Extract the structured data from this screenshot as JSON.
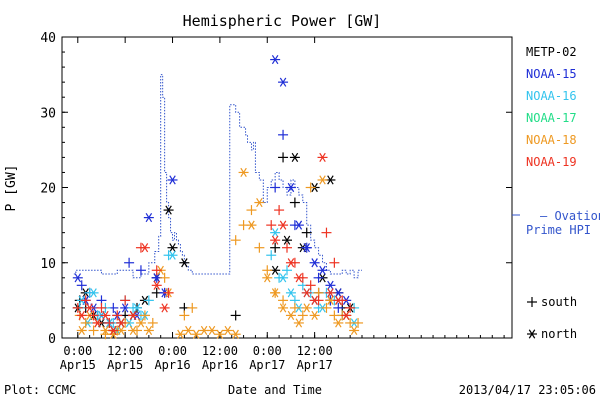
{
  "chart_data": {
    "type": "scatter",
    "title": "Hemispheric Power [GW]",
    "xlabel": "Date and Time",
    "ylabel": "P [GW]",
    "xlim": [
      -4,
      110
    ],
    "ylim": [
      0,
      40
    ],
    "yticks": [
      0,
      10,
      20,
      30,
      40
    ],
    "xticks": [
      {
        "x": 0,
        "line1": "0:00",
        "line2": "Apr15"
      },
      {
        "x": 12,
        "line1": "12:00",
        "line2": "Apr15"
      },
      {
        "x": 24,
        "line1": "0:00",
        "line2": "Apr16"
      },
      {
        "x": 36,
        "line1": "12:00",
        "line2": "Apr16"
      },
      {
        "x": 48,
        "line1": "0:00",
        "line2": "Apr17"
      },
      {
        "x": 60,
        "line1": "12:00",
        "line2": "Apr17"
      }
    ],
    "legend": [
      {
        "name": "METP-02",
        "color": "#000000"
      },
      {
        "name": "NOAA-15",
        "color": "#1f2ed6"
      },
      {
        "name": "NOAA-16",
        "color": "#33c4ee"
      },
      {
        "name": "NOAA-17",
        "color": "#22dd88"
      },
      {
        "name": "NOAA-18",
        "color": "#ee9922"
      },
      {
        "name": "NOAA-19",
        "color": "#ee3322"
      }
    ],
    "ovation": {
      "label_line1": "— Ovation",
      "label_line2": "Prime HPI",
      "color": "#3355cc",
      "x": [
        -1,
        -0.5,
        1.5,
        6,
        10,
        14,
        16,
        18,
        19.5,
        20.5,
        21,
        21.5,
        22,
        22.5,
        23,
        23.5,
        24,
        24.5,
        25,
        25.5,
        26,
        26.5,
        27,
        27.5,
        28,
        29,
        30,
        30.5,
        31,
        32,
        33,
        34,
        36,
        37,
        38.5,
        40,
        41,
        42,
        42.5,
        43,
        44,
        44.5,
        45,
        46,
        47,
        48,
        49,
        50,
        51,
        52,
        53,
        54,
        55,
        56,
        57,
        58,
        59,
        60,
        61,
        62,
        63,
        64,
        65,
        66,
        67,
        68,
        69,
        70,
        71,
        72
      ],
      "y": [
        8.5,
        9,
        9,
        8.5,
        9,
        8,
        8.5,
        10,
        11.5,
        13.5,
        35,
        32,
        22,
        18,
        16,
        14,
        13,
        14,
        13,
        12.5,
        11.5,
        11,
        10,
        9.5,
        9,
        8.5,
        8.5,
        8.5,
        8.5,
        8.5,
        8.5,
        8.5,
        8.5,
        8.5,
        31,
        30,
        28,
        28,
        27,
        26,
        25,
        26,
        22,
        21,
        18,
        20,
        21,
        22,
        21,
        20,
        19,
        21,
        20,
        19,
        18,
        15,
        13,
        12,
        11,
        10,
        9,
        8.5,
        8.5,
        8.5,
        9,
        8.5,
        9,
        8,
        9,
        9
      ]
    },
    "series": [
      {
        "name": "METP-02",
        "marker": "+",
        "x": [
          0.5,
          2,
          5,
          8,
          12,
          15,
          20,
          27,
          40,
          50,
          52,
          55,
          58,
          61,
          64,
          67
        ],
        "y": [
          5,
          4,
          3,
          2,
          3,
          4,
          6,
          4,
          3,
          12,
          24,
          18,
          14,
          6,
          5,
          4
        ]
      },
      {
        "name": "METP-02",
        "marker": "*",
        "x": [
          0,
          2,
          4,
          6,
          9,
          11,
          14,
          17,
          20,
          23,
          24,
          27,
          50,
          53,
          55,
          57,
          60,
          62,
          64,
          66,
          69
        ],
        "y": [
          4,
          6,
          3,
          2,
          1,
          2,
          3,
          5,
          8,
          17,
          12,
          10,
          9,
          13,
          24,
          12,
          20,
          8,
          21,
          6,
          4
        ]
      },
      {
        "name": "NOAA-15",
        "marker": "+",
        "x": [
          1,
          3,
          6,
          9,
          13,
          16,
          20,
          22,
          50,
          52,
          55,
          58,
          61,
          64,
          66
        ],
        "y": [
          7,
          6,
          5,
          4,
          10,
          9,
          8,
          6,
          20,
          27,
          15,
          12,
          8,
          5,
          4
        ]
      },
      {
        "name": "NOAA-15",
        "marker": "*",
        "x": [
          0,
          2,
          4,
          6,
          8,
          10,
          12,
          15,
          18,
          20,
          22,
          24,
          50,
          52,
          54,
          56,
          58,
          60,
          62,
          64,
          66,
          68
        ],
        "y": [
          8,
          5,
          4,
          3,
          2,
          3,
          4,
          3,
          16,
          8,
          6,
          21,
          37,
          34,
          20,
          15,
          12,
          10,
          9,
          7,
          6,
          5
        ]
      },
      {
        "name": "NOAA-16",
        "marker": "+",
        "x": [
          0.5,
          3,
          5,
          7,
          9,
          12,
          14,
          16,
          18,
          23,
          49,
          51,
          53,
          55,
          57,
          59,
          61,
          63,
          65,
          67,
          70
        ],
        "y": [
          4,
          6,
          3,
          4,
          2,
          5,
          4,
          3,
          5,
          11,
          11,
          8,
          9,
          5,
          7,
          6,
          4,
          6,
          5,
          3,
          4
        ]
      },
      {
        "name": "NOAA-16",
        "marker": "*",
        "x": [
          1,
          2.5,
          4,
          6,
          8,
          10,
          13,
          15,
          17,
          24,
          50,
          52,
          54,
          56,
          58,
          60,
          62,
          64,
          66,
          68,
          70
        ],
        "y": [
          5,
          2,
          6,
          3,
          2,
          1,
          2,
          4,
          3,
          11,
          14,
          8,
          6,
          4,
          6,
          5,
          4,
          6,
          5,
          3,
          2
        ]
      },
      {
        "name": "NOAA-18",
        "marker": "+",
        "x": [
          0.5,
          2,
          4,
          7,
          10,
          12,
          15,
          17,
          19,
          22,
          27,
          29,
          40,
          42,
          44,
          46,
          48,
          50,
          52,
          55,
          57,
          59,
          61,
          63,
          65,
          67,
          69,
          71
        ],
        "y": [
          3,
          2,
          1,
          0.5,
          1,
          2,
          1,
          3,
          2,
          8,
          3,
          4,
          13,
          15,
          17,
          12,
          9,
          6,
          5,
          4,
          3,
          20,
          6,
          4,
          3,
          3,
          2,
          2
        ]
      },
      {
        "name": "NOAA-18",
        "marker": "*",
        "x": [
          1,
          3,
          5,
          7,
          9,
          11,
          14,
          16,
          18,
          21,
          23,
          26,
          28,
          30,
          32,
          34,
          36,
          38,
          40,
          42,
          44,
          46,
          48,
          50,
          52,
          54,
          56,
          58,
          60,
          62,
          64,
          66,
          68,
          70
        ],
        "y": [
          1,
          3,
          2,
          1,
          0.5,
          1,
          1,
          2,
          1,
          9,
          6,
          0.5,
          1,
          0.5,
          1,
          1,
          0.5,
          1,
          0.5,
          22,
          15,
          18,
          8,
          6,
          4,
          3,
          2,
          4,
          3,
          21,
          5,
          2,
          3,
          1
        ]
      },
      {
        "name": "NOAA-19",
        "marker": "+",
        "x": [
          0,
          2,
          4,
          6,
          8,
          10,
          12,
          16,
          20,
          23,
          49,
          51,
          53,
          55,
          57,
          59,
          61,
          63,
          65,
          67,
          69
        ],
        "y": [
          4,
          5,
          3,
          4,
          2,
          3,
          5,
          12,
          9,
          6,
          15,
          17,
          12,
          10,
          8,
          7,
          5,
          14,
          10,
          5,
          4
        ]
      },
      {
        "name": "NOAA-19",
        "marker": "*",
        "x": [
          1,
          3,
          5,
          7,
          9,
          11,
          14,
          17,
          20,
          22,
          50,
          52,
          54,
          56,
          58,
          60,
          62,
          64,
          66,
          68
        ],
        "y": [
          3,
          4,
          2,
          3,
          1,
          2,
          3,
          12,
          7,
          4,
          13,
          15,
          10,
          8,
          6,
          5,
          24,
          6,
          5,
          3
        ]
      }
    ],
    "marker_key": [
      {
        "symbol": "+",
        "label": "south"
      },
      {
        "symbol": "*",
        "label": "north"
      }
    ]
  },
  "footer": {
    "left": "Plot: CCMC",
    "right": "2013/04/17 23:05:06"
  }
}
